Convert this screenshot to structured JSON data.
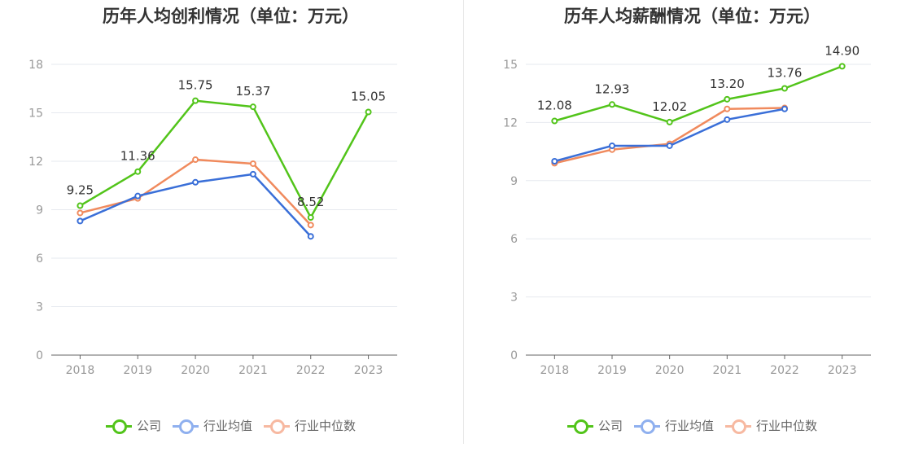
{
  "colors": {
    "company": "#52c41a",
    "industry_avg": "#3a6fd8",
    "industry_median": "#f08a5d",
    "company_legend": "#52c41a",
    "industry_avg_legend": "#8fb0ef",
    "industry_median_legend": "#f7b9a1"
  },
  "legend": [
    "公司",
    "行业均值",
    "行业中位数"
  ],
  "chart_data": [
    {
      "type": "line",
      "title": "历年人均创利情况（单位：万元）",
      "categories": [
        "2018",
        "2019",
        "2020",
        "2021",
        "2022",
        "2023"
      ],
      "ylim": [
        0,
        18
      ],
      "yticks": [
        0,
        3,
        6,
        9,
        12,
        15,
        18
      ],
      "series": [
        {
          "name": "公司",
          "values": [
            9.25,
            11.36,
            15.75,
            15.37,
            8.52,
            15.05
          ],
          "labels": [
            "9.25",
            "11.36",
            "15.75",
            "15.37",
            "8.52",
            "15.05"
          ]
        },
        {
          "name": "行业均值",
          "values": [
            8.3,
            9.85,
            10.7,
            11.2,
            7.35,
            null
          ]
        },
        {
          "name": "行业中位数",
          "values": [
            8.8,
            9.7,
            12.1,
            11.85,
            8.05,
            null
          ]
        }
      ],
      "grid": true,
      "legend_position": "bottom"
    },
    {
      "type": "line",
      "title": "历年人均薪酬情况（单位：万元）",
      "categories": [
        "2018",
        "2019",
        "2020",
        "2021",
        "2022",
        "2023"
      ],
      "ylim": [
        0,
        15
      ],
      "yticks": [
        0,
        3,
        6,
        9,
        12,
        15
      ],
      "series": [
        {
          "name": "公司",
          "values": [
            12.08,
            12.93,
            12.02,
            13.2,
            13.76,
            14.9
          ],
          "labels": [
            "12.08",
            "12.93",
            "12.02",
            "13.20",
            "13.76",
            "14.90"
          ]
        },
        {
          "name": "行业均值",
          "values": [
            10.0,
            10.8,
            10.8,
            12.15,
            12.7,
            null
          ]
        },
        {
          "name": "行业中位数",
          "values": [
            9.9,
            10.6,
            10.9,
            12.7,
            12.75,
            null
          ]
        }
      ],
      "grid": true,
      "legend_position": "bottom"
    }
  ]
}
